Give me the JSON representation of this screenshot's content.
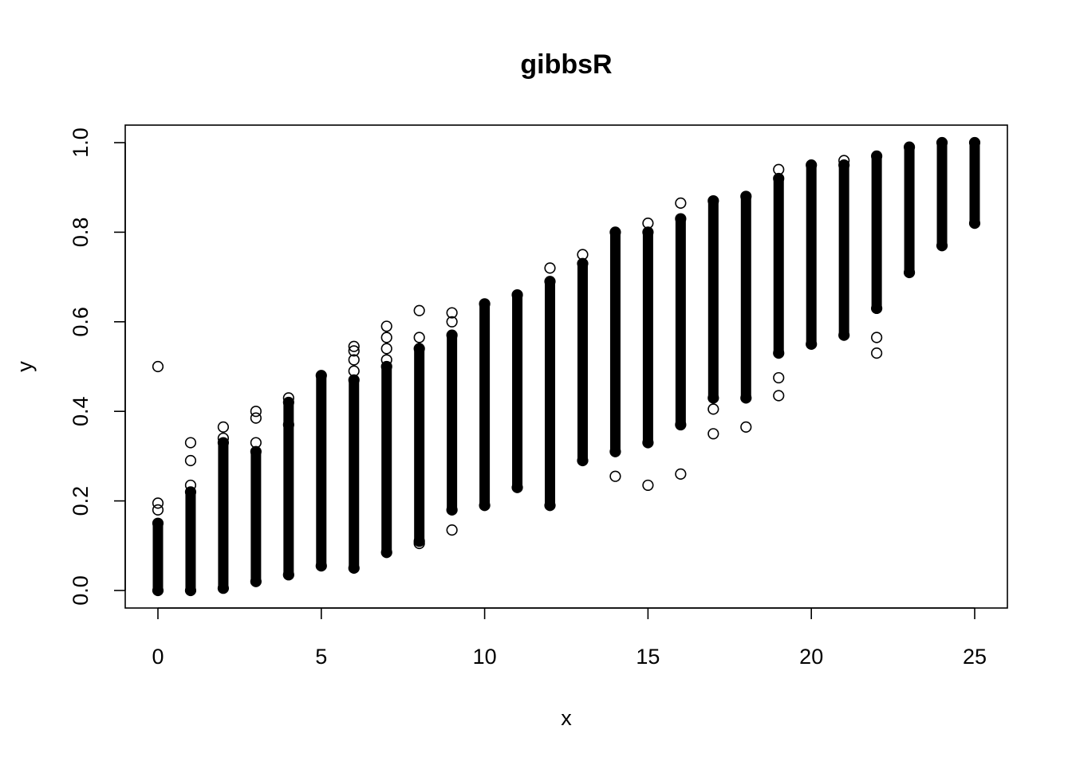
{
  "chart_data": {
    "type": "scatter",
    "title": "gibbsR",
    "xlabel": "x",
    "ylabel": "y",
    "xlim": [
      0,
      25
    ],
    "ylim": [
      0,
      1
    ],
    "x_ticks": [
      0,
      5,
      10,
      15,
      20,
      25
    ],
    "y_ticks": [
      "0.0",
      "0.2",
      "0.4",
      "0.6",
      "0.8",
      "1.0"
    ],
    "grid": false,
    "legend": "none",
    "marker": "open-circle",
    "color": "#000000",
    "point_bands": [
      {
        "x": 0,
        "y_min": 0.0,
        "y_max": 0.15
      },
      {
        "x": 1,
        "y_min": 0.0,
        "y_max": 0.22
      },
      {
        "x": 2,
        "y_min": 0.005,
        "y_max": 0.33
      },
      {
        "x": 3,
        "y_min": 0.02,
        "y_max": 0.31
      },
      {
        "x": 4,
        "y_min": 0.035,
        "y_max": 0.42
      },
      {
        "x": 5,
        "y_min": 0.055,
        "y_max": 0.48
      },
      {
        "x": 6,
        "y_min": 0.05,
        "y_max": 0.47
      },
      {
        "x": 7,
        "y_min": 0.085,
        "y_max": 0.5
      },
      {
        "x": 8,
        "y_min": 0.11,
        "y_max": 0.54
      },
      {
        "x": 9,
        "y_min": 0.18,
        "y_max": 0.57
      },
      {
        "x": 10,
        "y_min": 0.19,
        "y_max": 0.64
      },
      {
        "x": 11,
        "y_min": 0.23,
        "y_max": 0.66
      },
      {
        "x": 12,
        "y_min": 0.19,
        "y_max": 0.69
      },
      {
        "x": 13,
        "y_min": 0.29,
        "y_max": 0.73
      },
      {
        "x": 14,
        "y_min": 0.31,
        "y_max": 0.8
      },
      {
        "x": 15,
        "y_min": 0.33,
        "y_max": 0.8
      },
      {
        "x": 16,
        "y_min": 0.37,
        "y_max": 0.83
      },
      {
        "x": 17,
        "y_min": 0.43,
        "y_max": 0.87
      },
      {
        "x": 18,
        "y_min": 0.43,
        "y_max": 0.88
      },
      {
        "x": 19,
        "y_min": 0.53,
        "y_max": 0.92
      },
      {
        "x": 20,
        "y_min": 0.55,
        "y_max": 0.95
      },
      {
        "x": 21,
        "y_min": 0.57,
        "y_max": 0.95
      },
      {
        "x": 22,
        "y_min": 0.63,
        "y_max": 0.97
      },
      {
        "x": 23,
        "y_min": 0.71,
        "y_max": 0.99
      },
      {
        "x": 24,
        "y_min": 0.77,
        "y_max": 1.0
      },
      {
        "x": 25,
        "y_min": 0.82,
        "y_max": 1.0
      }
    ],
    "outlier_points": [
      {
        "x": 0,
        "y": 0.5
      },
      {
        "x": 0,
        "y": 0.195
      },
      {
        "x": 0,
        "y": 0.18
      },
      {
        "x": 1,
        "y": 0.33
      },
      {
        "x": 1,
        "y": 0.29
      },
      {
        "x": 1,
        "y": 0.235
      },
      {
        "x": 2,
        "y": 0.365
      },
      {
        "x": 2,
        "y": 0.34
      },
      {
        "x": 3,
        "y": 0.4
      },
      {
        "x": 3,
        "y": 0.385
      },
      {
        "x": 3,
        "y": 0.33
      },
      {
        "x": 4,
        "y": 0.43
      },
      {
        "x": 4,
        "y": 0.37
      },
      {
        "x": 6,
        "y": 0.545
      },
      {
        "x": 6,
        "y": 0.535
      },
      {
        "x": 6,
        "y": 0.515
      },
      {
        "x": 6,
        "y": 0.49
      },
      {
        "x": 7,
        "y": 0.59
      },
      {
        "x": 7,
        "y": 0.565
      },
      {
        "x": 7,
        "y": 0.54
      },
      {
        "x": 7,
        "y": 0.515
      },
      {
        "x": 8,
        "y": 0.625
      },
      {
        "x": 8,
        "y": 0.565
      },
      {
        "x": 8,
        "y": 0.105
      },
      {
        "x": 9,
        "y": 0.62
      },
      {
        "x": 9,
        "y": 0.6
      },
      {
        "x": 9,
        "y": 0.135
      },
      {
        "x": 12,
        "y": 0.72
      },
      {
        "x": 13,
        "y": 0.75
      },
      {
        "x": 14,
        "y": 0.255
      },
      {
        "x": 15,
        "y": 0.82
      },
      {
        "x": 15,
        "y": 0.235
      },
      {
        "x": 16,
        "y": 0.865
      },
      {
        "x": 16,
        "y": 0.26
      },
      {
        "x": 17,
        "y": 0.35
      },
      {
        "x": 17,
        "y": 0.405
      },
      {
        "x": 18,
        "y": 0.365
      },
      {
        "x": 19,
        "y": 0.94
      },
      {
        "x": 19,
        "y": 0.475
      },
      {
        "x": 19,
        "y": 0.435
      },
      {
        "x": 21,
        "y": 0.96
      },
      {
        "x": 22,
        "y": 0.565
      },
      {
        "x": 22,
        "y": 0.53
      }
    ]
  }
}
